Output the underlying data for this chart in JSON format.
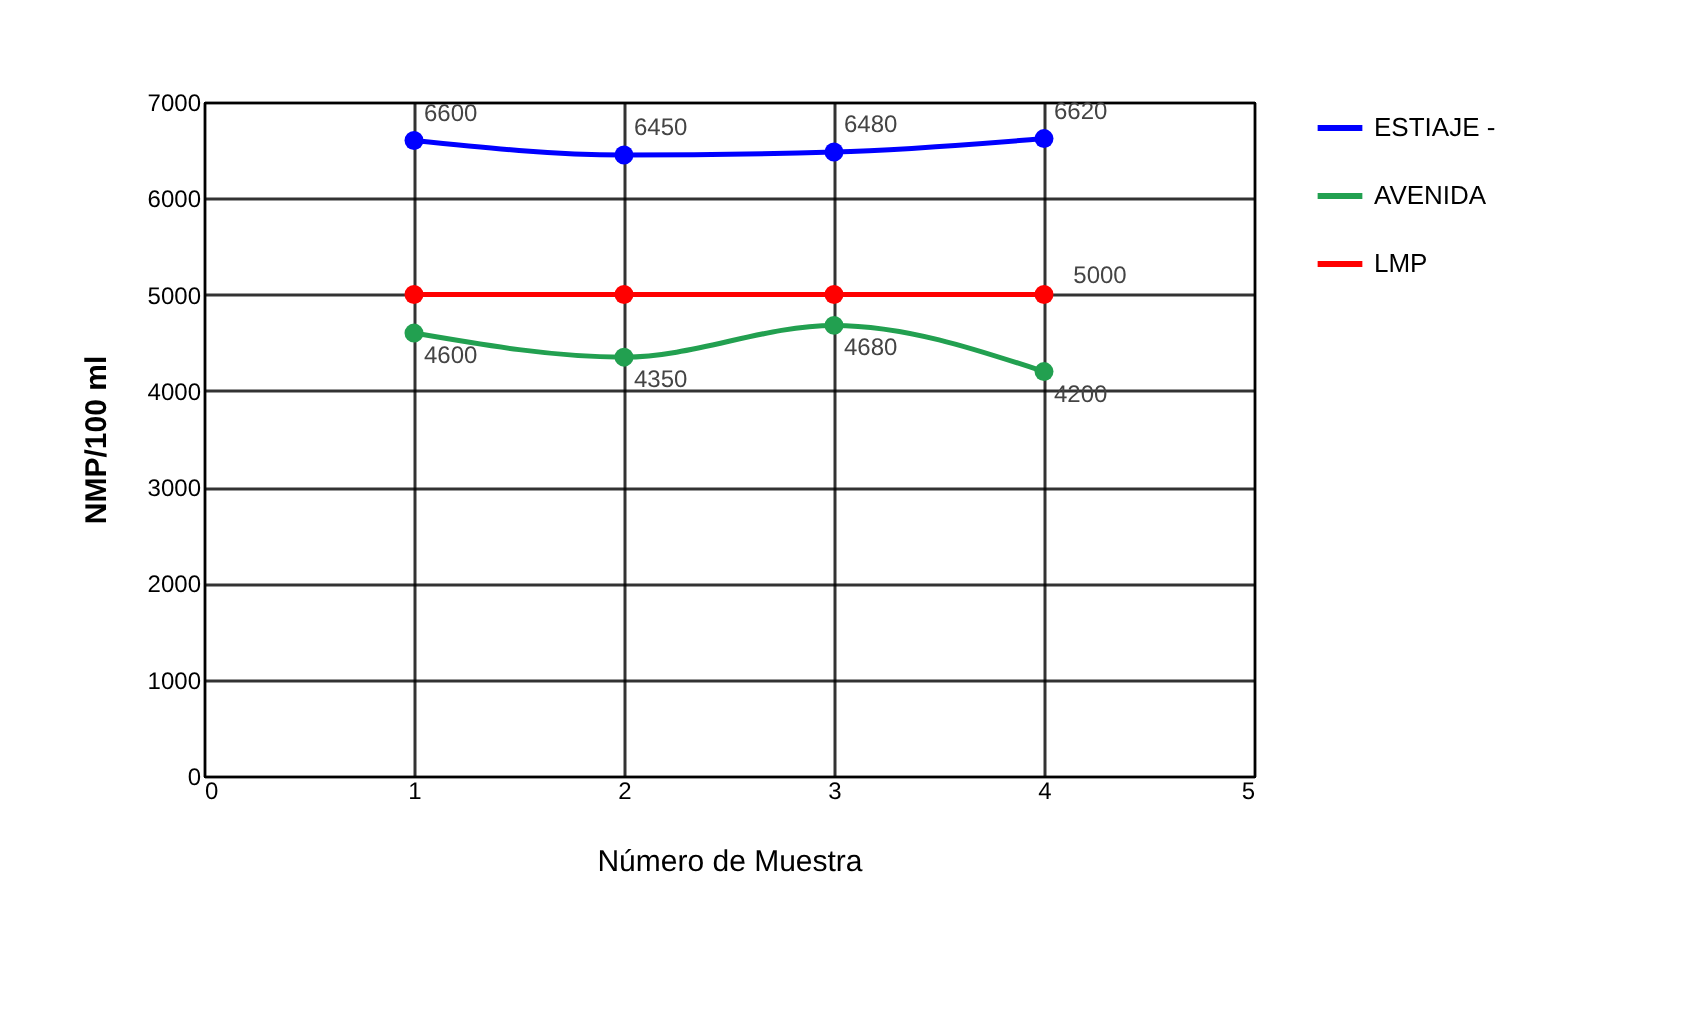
{
  "chart_data": {
    "type": "line",
    "xlabel": "Número de Muestra",
    "ylabel": "NMP/100 ml",
    "x": [
      1,
      2,
      3,
      4
    ],
    "xlim": [
      0,
      5
    ],
    "xticks": [
      0,
      1,
      2,
      3,
      4,
      5
    ],
    "ylim": [
      0,
      7000
    ],
    "yticks": [
      0,
      1000,
      2000,
      3000,
      4000,
      5000,
      6000,
      7000
    ],
    "grid": true,
    "legend": "right",
    "marker": "circle",
    "line_style": "solid",
    "series": [
      {
        "name": "ESTIAJE -",
        "color": "#0000ff",
        "values": [
          6600,
          6450,
          6480,
          6620
        ],
        "value_labels": [
          "6600",
          "6450",
          "6480",
          "6620"
        ]
      },
      {
        "name": "AVENIDA",
        "color": "#22a050",
        "values": [
          4600,
          4350,
          4680,
          4200
        ],
        "value_labels": [
          "4600",
          "4350",
          "4680",
          "4200"
        ]
      },
      {
        "name": "LMP",
        "color": "#ff0000",
        "values": [
          5000,
          5000,
          5000,
          5000
        ],
        "value_labels": [
          null,
          null,
          null,
          "5000"
        ]
      }
    ]
  }
}
